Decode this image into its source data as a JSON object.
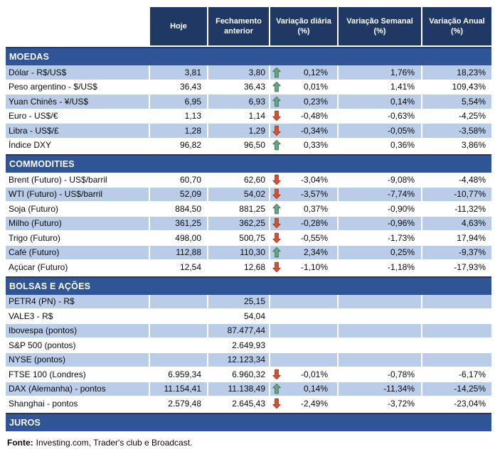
{
  "header": {
    "columns": [
      {
        "id": "hoje",
        "label": "Hoje"
      },
      {
        "id": "fechamento-anterior",
        "label": "Fechamento anterior"
      },
      {
        "id": "variacao-diaria",
        "label": "Variação diária (%)"
      },
      {
        "id": "variacao-semanal",
        "label": "Variação Semanal (%)"
      },
      {
        "id": "variacao-anual",
        "label": "Variação Anual (%)"
      }
    ]
  },
  "icons": {
    "up": "arrow-up-icon",
    "down": "arrow-down-icon"
  },
  "sections": [
    {
      "id": "moedas",
      "title": "MOEDAS",
      "rows": [
        {
          "label": "Dólar - R$/US$",
          "hoje": "3,81",
          "fechamento": "3,80",
          "arrow": "up",
          "var_diaria": "0,12%",
          "var_semanal": "1,76%",
          "var_anual": "18,23%",
          "shaded": true
        },
        {
          "label": "Peso argentino - $/US$",
          "hoje": "36,43",
          "fechamento": "36,43",
          "arrow": "up",
          "var_diaria": "0,01%",
          "var_semanal": "1,41%",
          "var_anual": "109,43%",
          "shaded": false
        },
        {
          "label": "Yuan Chinês - ¥/US$",
          "hoje": "6,95",
          "fechamento": "6,93",
          "arrow": "up",
          "var_diaria": "0,23%",
          "var_semanal": "0,14%",
          "var_anual": "5,54%",
          "shaded": true
        },
        {
          "label": "Euro - US$/€",
          "hoje": "1,13",
          "fechamento": "1,14",
          "arrow": "down",
          "var_diaria": "-0,48%",
          "var_semanal": "-0,63%",
          "var_anual": "-4,25%",
          "shaded": false
        },
        {
          "label": "Libra - US$/£",
          "hoje": "1,28",
          "fechamento": "1,29",
          "arrow": "down",
          "var_diaria": "-0,34%",
          "var_semanal": "-0,05%",
          "var_anual": "-3,58%",
          "shaded": true
        },
        {
          "label": "Índice DXY",
          "hoje": "96,82",
          "fechamento": "96,50",
          "arrow": "up",
          "var_diaria": "0,33%",
          "var_semanal": "0,36%",
          "var_anual": "3,86%",
          "shaded": false
        }
      ]
    },
    {
      "id": "commodities",
      "title": "COMMODITIES",
      "rows": [
        {
          "label": "Brent (Futuro) - US$/barril",
          "hoje": "60,70",
          "fechamento": "62,60",
          "arrow": "down",
          "var_diaria": "-3,04%",
          "var_semanal": "-9,08%",
          "var_anual": "-4,48%",
          "shaded": false
        },
        {
          "label": "WTI (Futuro) - US$/barril",
          "hoje": "52,09",
          "fechamento": "54,02",
          "arrow": "down",
          "var_diaria": "-3,57%",
          "var_semanal": "-7,74%",
          "var_anual": "-10,77%",
          "shaded": true
        },
        {
          "label": "Soja (Futuro)",
          "hoje": "884,50",
          "fechamento": "881,25",
          "arrow": "up",
          "var_diaria": "0,37%",
          "var_semanal": "-0,90%",
          "var_anual": "-11,32%",
          "shaded": false
        },
        {
          "label": "Milho (Futuro)",
          "hoje": "361,25",
          "fechamento": "362,25",
          "arrow": "down",
          "var_diaria": "-0,28%",
          "var_semanal": "-0,96%",
          "var_anual": "4,63%",
          "shaded": true
        },
        {
          "label": "Trigo (Futuro)",
          "hoje": "498,00",
          "fechamento": "500,75",
          "arrow": "down",
          "var_diaria": "-0,55%",
          "var_semanal": "-1,73%",
          "var_anual": "17,94%",
          "shaded": false
        },
        {
          "label": "Café (Futuro)",
          "hoje": "112,88",
          "fechamento": "110,30",
          "arrow": "up",
          "var_diaria": "2,34%",
          "var_semanal": "0,25%",
          "var_anual": "-9,37%",
          "shaded": true
        },
        {
          "label": "Açúcar (Futuro)",
          "hoje": "12,54",
          "fechamento": "12,68",
          "arrow": "down",
          "var_diaria": "-1,10%",
          "var_semanal": "-1,18%",
          "var_anual": "-17,93%",
          "shaded": false
        }
      ]
    },
    {
      "id": "bolsas-e-acoes",
      "title": "BOLSAS E AÇÕES",
      "rows": [
        {
          "label": "PETR4 (PN) - R$",
          "hoje": "",
          "fechamento": "25,15",
          "arrow": null,
          "var_diaria": "",
          "var_semanal": "",
          "var_anual": "",
          "shaded": true
        },
        {
          "label": "VALE3 - R$",
          "hoje": "",
          "fechamento": "54,04",
          "arrow": null,
          "var_diaria": "",
          "var_semanal": "",
          "var_anual": "",
          "shaded": false
        },
        {
          "label": "Ibovespa (pontos)",
          "hoje": "",
          "fechamento": "87.477,44",
          "arrow": null,
          "var_diaria": "",
          "var_semanal": "",
          "var_anual": "",
          "shaded": true
        },
        {
          "label": "S&P 500 (pontos)",
          "hoje": "",
          "fechamento": "2.649,93",
          "arrow": null,
          "var_diaria": "",
          "var_semanal": "",
          "var_anual": "",
          "shaded": false
        },
        {
          "label": "NYSE (pontos)",
          "hoje": "",
          "fechamento": "12.123,34",
          "arrow": null,
          "var_diaria": "",
          "var_semanal": "",
          "var_anual": "",
          "shaded": true
        },
        {
          "label": "FTSE 100 (Londres)",
          "hoje": "6.959,34",
          "fechamento": "6.960,32",
          "arrow": "down",
          "var_diaria": "-0,01%",
          "var_semanal": "-0,78%",
          "var_anual": "-6,17%",
          "shaded": false
        },
        {
          "label": "DAX (Alemanha) - pontos",
          "hoje": "11.154,41",
          "fechamento": "11.138,49",
          "arrow": "up",
          "var_diaria": "0,14%",
          "var_semanal": "-11,34%",
          "var_anual": "-14,25%",
          "shaded": true
        },
        {
          "label": "Shanghai - pontos",
          "hoje": "2.579,48",
          "fechamento": "2.645,43",
          "arrow": "down",
          "var_diaria": "-2,49%",
          "var_semanal": "-3,72%",
          "var_anual": "-23,04%",
          "shaded": false
        }
      ]
    },
    {
      "id": "juros",
      "title": "JUROS",
      "rows": []
    }
  ],
  "footer": {
    "label": "Fonte:",
    "text": "Investing.com, Trader's club e Broadcast."
  },
  "colors": {
    "header_bg": "#1F3864",
    "header_text": "#FFFFFF",
    "section_bg": "#2F5597",
    "section_border": "#1F3864",
    "row_shaded_bg": "#B9CDE8",
    "text": "#0A0A0A",
    "arrow_up": "#6AA284",
    "arrow_up_border": "#3F7A57",
    "arrow_down": "#CD5537",
    "arrow_down_border": "#A93A20"
  }
}
